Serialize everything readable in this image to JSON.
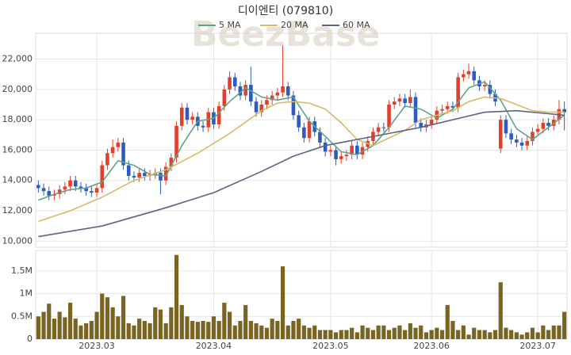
{
  "chart_data": [
    {
      "type": "candlestick",
      "title": "디이엔티 (079810)",
      "watermark": "BeezBase",
      "legend": "top",
      "grid": true,
      "up_color": "#e0412c",
      "down_color": "#2d5bbf",
      "xlim": [
        -0.5,
        99.5
      ],
      "ylim": [
        9600,
        23700
      ],
      "yticks": [
        {
          "value": 10000,
          "label": "10,000"
        },
        {
          "value": 12000,
          "label": "12,000"
        },
        {
          "value": 14000,
          "label": "14,000"
        },
        {
          "value": 16000,
          "label": "16,000"
        },
        {
          "value": 18000,
          "label": "18,000"
        },
        {
          "value": 20000,
          "label": "20,000"
        },
        {
          "value": 22000,
          "label": "22,000"
        }
      ],
      "open": [
        13700,
        13500,
        13300,
        13000,
        13100,
        13400,
        13600,
        14000,
        13600,
        13500,
        13300,
        13200,
        13500,
        15000,
        15800,
        16200,
        16500,
        15000,
        14300,
        14200,
        14500,
        14300,
        14400,
        14500,
        14000,
        14900,
        15500,
        17600,
        18800,
        18000,
        18200,
        17600,
        17500,
        18500,
        17700,
        18900,
        20000,
        20800,
        20200,
        19600,
        20300,
        19200,
        18500,
        19000,
        19300,
        19600,
        19800,
        20200,
        19600,
        18300,
        17500,
        16800,
        17900,
        17200,
        16500,
        15900,
        16000,
        15400,
        15600,
        15700,
        16300,
        15700,
        16200,
        16600,
        17200,
        17500,
        17500,
        19000,
        19200,
        19400,
        19100,
        19500,
        17800,
        17500,
        17700,
        18000,
        18600,
        18700,
        18900,
        18800,
        20800,
        21000,
        21200,
        20600,
        20200,
        20300,
        19700,
        16100,
        18000,
        17100,
        16700,
        16500,
        16300,
        16600,
        17200,
        17400,
        17800,
        17600,
        18000,
        18700
      ],
      "high": [
        14000,
        13800,
        13600,
        13400,
        13700,
        13900,
        14300,
        14300,
        13900,
        13800,
        13600,
        13800,
        15300,
        16100,
        16700,
        16800,
        16800,
        15300,
        14600,
        14800,
        14800,
        14700,
        14800,
        14800,
        15200,
        15800,
        17900,
        19100,
        19100,
        18500,
        18500,
        17900,
        18800,
        18800,
        19200,
        20300,
        21200,
        21100,
        20500,
        20600,
        21500,
        19500,
        19300,
        19600,
        19900,
        20100,
        22900,
        20500,
        19900,
        18600,
        17800,
        18200,
        18200,
        17500,
        16800,
        16300,
        16300,
        15900,
        16000,
        16600,
        16600,
        16500,
        16900,
        17500,
        17800,
        17800,
        19300,
        19500,
        19700,
        19700,
        20000,
        19800,
        18100,
        18000,
        18300,
        18900,
        19000,
        19200,
        19200,
        21100,
        21300,
        21700,
        21500,
        20900,
        20600,
        20600,
        20000,
        18300,
        18300,
        17400,
        17000,
        16800,
        16900,
        17500,
        17700,
        18100,
        18100,
        18300,
        19300,
        19200
      ],
      "low": [
        13200,
        13000,
        12700,
        12700,
        12800,
        13100,
        13300,
        13300,
        13200,
        13000,
        12900,
        12900,
        13200,
        14700,
        15500,
        15900,
        14700,
        14000,
        13900,
        13900,
        14000,
        14000,
        14100,
        13100,
        13700,
        14600,
        15200,
        17300,
        17700,
        17700,
        17300,
        17200,
        17200,
        17400,
        17400,
        18600,
        19700,
        19900,
        19300,
        19300,
        18900,
        18200,
        18200,
        18700,
        19000,
        19300,
        19500,
        19300,
        18000,
        17200,
        16500,
        16500,
        16900,
        16200,
        15600,
        15600,
        15000,
        15100,
        15300,
        15400,
        15400,
        15400,
        15900,
        16300,
        16900,
        17200,
        17200,
        18700,
        18900,
        18800,
        18800,
        17500,
        17200,
        17200,
        17400,
        17700,
        18300,
        18400,
        18500,
        18500,
        20500,
        20700,
        20300,
        19900,
        19900,
        19400,
        18900,
        15800,
        16800,
        16400,
        16200,
        16000,
        16000,
        16300,
        16900,
        17100,
        17300,
        17300,
        17700,
        17300
      ],
      "close": [
        13500,
        13300,
        13000,
        13100,
        13400,
        13600,
        14000,
        13600,
        13500,
        13300,
        13200,
        13500,
        15000,
        15800,
        16200,
        16500,
        15000,
        14300,
        14200,
        14500,
        14300,
        14400,
        14500,
        14000,
        14900,
        15500,
        17600,
        18800,
        18000,
        18200,
        17600,
        17500,
        18500,
        17700,
        18900,
        20000,
        20800,
        20200,
        19600,
        20300,
        19200,
        18500,
        19000,
        19300,
        19600,
        19800,
        20200,
        19600,
        18300,
        17500,
        16800,
        17900,
        17200,
        16500,
        15900,
        16000,
        15400,
        15600,
        15700,
        16300,
        15700,
        16200,
        16600,
        17200,
        17500,
        17500,
        19000,
        19200,
        19400,
        19100,
        19500,
        17800,
        17500,
        17700,
        18000,
        18600,
        18700,
        18900,
        18800,
        20800,
        21000,
        21200,
        20600,
        20200,
        20300,
        19700,
        19200,
        18000,
        17100,
        16700,
        16500,
        16300,
        16600,
        17200,
        17400,
        17800,
        17600,
        18000,
        18700,
        18500
      ],
      "series": [
        {
          "name": "5 MA",
          "color": "#5ea38c",
          "x": [
            0,
            3,
            6,
            9,
            12,
            15,
            18,
            21,
            24,
            27,
            30,
            33,
            36,
            39,
            42,
            45,
            48,
            51,
            54,
            57,
            60,
            63,
            66,
            69,
            72,
            75,
            78,
            81,
            84,
            87,
            90,
            93,
            96,
            99
          ],
          "values": [
            12700,
            13100,
            13400,
            13500,
            13900,
            15300,
            15000,
            14400,
            14300,
            16300,
            17900,
            18100,
            19200,
            20100,
            19500,
            19300,
            19500,
            17900,
            16900,
            15900,
            15700,
            16300,
            17500,
            18900,
            18700,
            18100,
            18700,
            20100,
            20500,
            19300,
            17400,
            16700,
            17500,
            18300
          ]
        },
        {
          "name": "20 MA",
          "color": "#d6bb63",
          "x": [
            0,
            6,
            12,
            18,
            24,
            30,
            36,
            42,
            45,
            48,
            51,
            54,
            57,
            60,
            63,
            66,
            69,
            72,
            75,
            78,
            81,
            84,
            87,
            90,
            93,
            96,
            99
          ],
          "values": [
            11300,
            12000,
            12900,
            14000,
            14700,
            15800,
            17100,
            18600,
            19100,
            19200,
            19100,
            18700,
            17800,
            16700,
            16300,
            16800,
            17300,
            18000,
            18300,
            18600,
            19200,
            19500,
            19400,
            19000,
            18600,
            18500,
            18500
          ]
        },
        {
          "name": "60 MA",
          "color": "#5a6482",
          "x": [
            0,
            12,
            24,
            33,
            42,
            48,
            54,
            60,
            66,
            72,
            78,
            84,
            90,
            96,
            99
          ],
          "values": [
            10300,
            11000,
            12200,
            13200,
            14600,
            15600,
            16300,
            16700,
            17100,
            17500,
            18000,
            18500,
            18600,
            18400,
            18300
          ]
        }
      ]
    },
    {
      "type": "bar",
      "color": "#7a6422",
      "grid": true,
      "xlim": [
        -0.5,
        99.5
      ],
      "xticks": [
        {
          "value": 11,
          "label": "2023.03"
        },
        {
          "value": 33,
          "label": "2023.04"
        },
        {
          "value": 55,
          "label": "2023.05"
        },
        {
          "value": 74,
          "label": "2023.06"
        },
        {
          "value": 94,
          "label": "2023.07"
        }
      ],
      "ylim": [
        0,
        1950000
      ],
      "yticks": [
        0,
        {
          "value": 500000,
          "label": "0.5M"
        },
        {
          "value": 1000000,
          "label": "1M"
        },
        {
          "value": 1500000,
          "label": "1.5M"
        }
      ],
      "values": [
        500000,
        600000,
        780000,
        450000,
        600000,
        480000,
        800000,
        450000,
        300000,
        350000,
        400000,
        600000,
        1000000,
        920000,
        700000,
        500000,
        950000,
        350000,
        300000,
        450000,
        400000,
        350000,
        700000,
        650000,
        350000,
        700000,
        1850000,
        750000,
        500000,
        400000,
        380000,
        400000,
        380000,
        500000,
        400000,
        800000,
        600000,
        300000,
        400000,
        750000,
        400000,
        350000,
        300000,
        250000,
        450000,
        400000,
        1600000,
        300000,
        400000,
        450000,
        300000,
        250000,
        300000,
        200000,
        200000,
        200000,
        150000,
        200000,
        200000,
        250000,
        150000,
        300000,
        250000,
        200000,
        300000,
        300000,
        200000,
        250000,
        300000,
        200000,
        350000,
        250000,
        300000,
        150000,
        200000,
        250000,
        200000,
        750000,
        400000,
        200000,
        300000,
        100000,
        250000,
        200000,
        200000,
        150000,
        200000,
        1250000,
        250000,
        200000,
        150000,
        100000,
        150000,
        250000,
        150000,
        300000,
        200000,
        300000,
        300000,
        600000
      ]
    }
  ]
}
